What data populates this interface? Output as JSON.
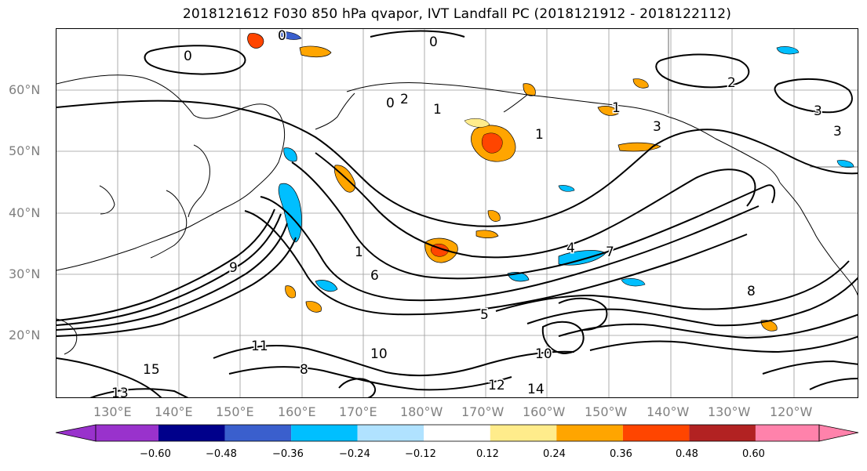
{
  "title": "2018121612 F030 850 hPa qvapor, IVT Landfall PC (2018121912 - 2018122112)",
  "map": {
    "lat_labels": [
      "60°N",
      "50°N",
      "40°N",
      "30°N",
      "20°N"
    ],
    "lon_labels": [
      "130°E",
      "140°E",
      "150°E",
      "160°E",
      "170°E",
      "180°W",
      "170°W",
      "160°W",
      "150°W",
      "140°W",
      "130°W",
      "120°W"
    ],
    "contour_labels": [
      "0",
      "0",
      "0",
      "0",
      "1",
      "1",
      "1",
      "1",
      "2",
      "2",
      "3",
      "3",
      "3",
      "4",
      "5",
      "6",
      "7",
      "8",
      "8",
      "9",
      "10",
      "10",
      "11",
      "12",
      "13",
      "14",
      "15"
    ],
    "line_color": "#000000",
    "grid_color": "#9a9a9a",
    "coast_color": "#000000"
  },
  "colorbar": {
    "colors": [
      "#9932CC",
      "#00008B",
      "#3A5FCD",
      "#00BFFF",
      "#B0E2FF",
      "#FFFFFF",
      "#FFEC8B",
      "#FFA500",
      "#FF4500",
      "#B22222",
      "#FF82AB"
    ],
    "ticks": [
      "−0.60",
      "−0.48",
      "−0.36",
      "−0.24",
      "−0.12",
      "0.12",
      "0.24",
      "0.36",
      "0.48",
      "0.60"
    ]
  }
}
